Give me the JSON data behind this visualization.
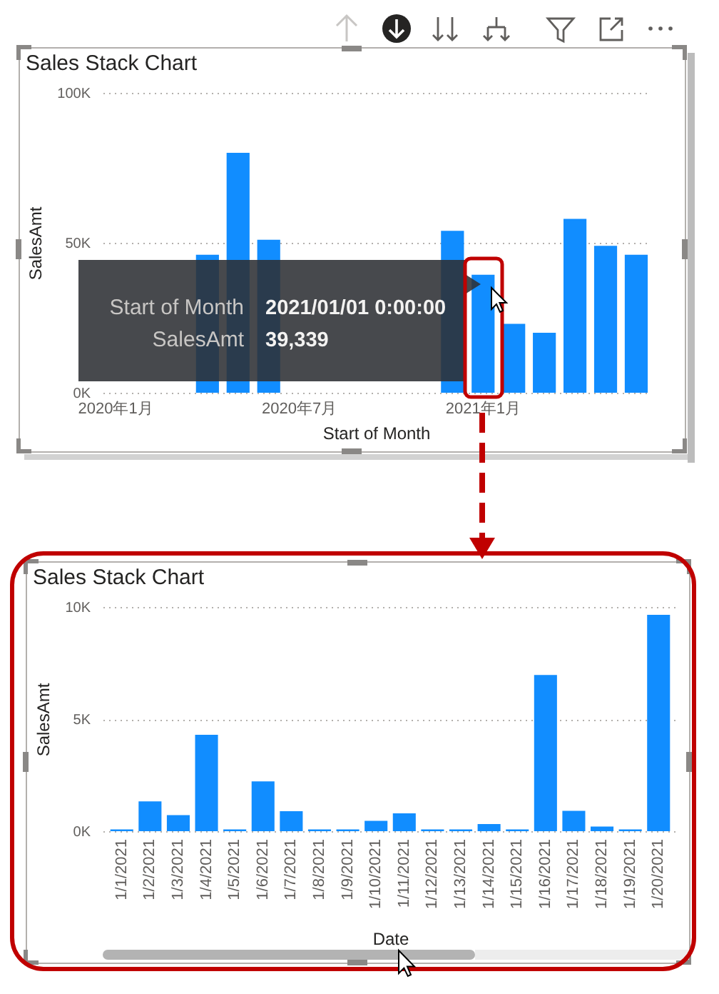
{
  "chart_data": [
    {
      "type": "bar",
      "title": "Sales Stack Chart",
      "xlabel": "Start of Month",
      "ylabel": "SalesAmt",
      "categories": [
        "2020年1月",
        null,
        null,
        null,
        null,
        null,
        "2020年7月",
        null,
        null,
        null,
        null,
        null,
        "2021年1月",
        null,
        null,
        null,
        null,
        null
      ],
      "values": [
        null,
        null,
        null,
        46000,
        80000,
        51000,
        null,
        null,
        null,
        null,
        null,
        54000,
        39339,
        23000,
        20000,
        58000,
        49000,
        46000
      ],
      "color": "#118dff",
      "ylim": [
        0,
        100000
      ],
      "yticks": [
        {
          "value": 0,
          "label": "0K"
        },
        {
          "value": 50000,
          "label": "50K"
        },
        {
          "value": 100000,
          "label": "100K"
        }
      ],
      "grid": "y",
      "annotations": [
        "Start of Month",
        "2021/01/01 0:00:00",
        "SalesAmt",
        "39,339"
      ]
    },
    {
      "type": "bar",
      "title": "Sales Stack Chart",
      "xlabel": "Date",
      "ylabel": "SalesAmt",
      "categories": [
        "1/1/2021",
        "1/2/2021",
        "1/3/2021",
        "1/4/2021",
        "1/5/2021",
        "1/6/2021",
        "1/7/2021",
        "1/8/2021",
        "1/9/2021",
        "1/10/2021",
        "1/11/2021",
        "1/12/2021",
        "1/13/2021",
        "1/14/2021",
        "1/15/2021",
        "1/16/2021",
        "1/17/2021",
        "1/18/2021",
        "1/19/2021",
        "1/20/2021"
      ],
      "values": [
        80,
        1330,
        720,
        4300,
        80,
        2220,
        890,
        80,
        80,
        460,
        800,
        80,
        80,
        320,
        80,
        6970,
        910,
        210,
        80,
        9650
      ],
      "color": "#118dff",
      "ylim": [
        0,
        10000
      ],
      "yticks": [
        {
          "value": 0,
          "label": "0K"
        },
        {
          "value": 5000,
          "label": "5K"
        },
        {
          "value": 10000,
          "label": "10K"
        }
      ],
      "grid": "y"
    }
  ]
}
